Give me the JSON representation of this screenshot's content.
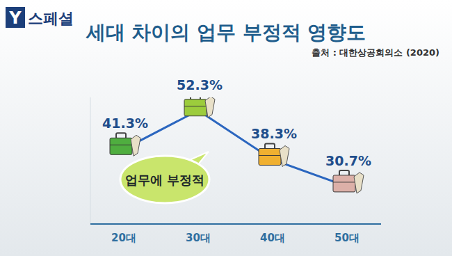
{
  "header": {
    "logo": "Y",
    "program": "스페셜"
  },
  "chart_data": {
    "type": "line",
    "title": "세대 차이의 업무 부정적 영향도",
    "source": "출처 : 대한상공회의소 (2020)",
    "annotations": [
      "업무에 부정적"
    ],
    "categories": [
      "20대",
      "30대",
      "40대",
      "50대"
    ],
    "values": [
      41.3,
      52.3,
      38.3,
      30.7
    ],
    "value_labels": [
      "41.3%",
      "52.3%",
      "38.3%",
      "30.7%"
    ],
    "color": "#2b66bf",
    "colors": [
      "#4fae3f",
      "#9ccc3c",
      "#f0b030",
      "#dcb0a8"
    ],
    "ylim": [
      20,
      56
    ],
    "tick_labels": false,
    "data_labels": true,
    "grid": false,
    "marker": "briefcase"
  }
}
